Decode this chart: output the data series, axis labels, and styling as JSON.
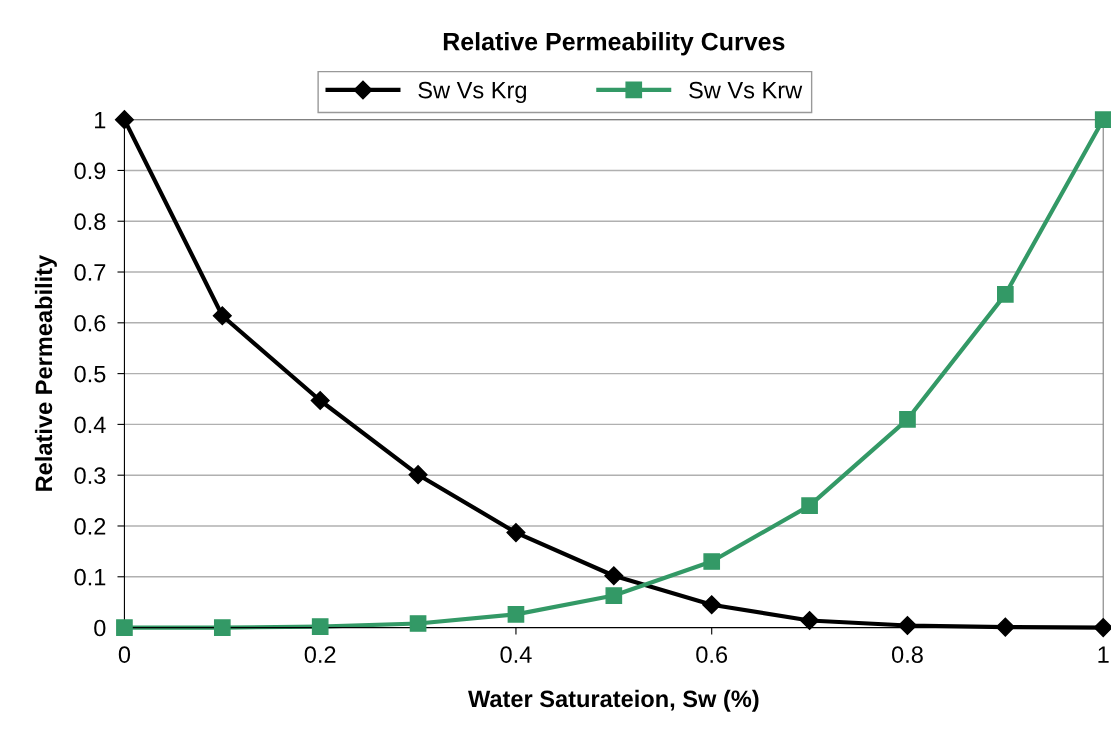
{
  "chart_data": {
    "type": "line",
    "title": "Relative Permeability Curves",
    "xlabel": "Water Saturateion, Sw (%)",
    "ylabel": "Relative Permeability",
    "x": [
      0,
      0.1,
      0.2,
      0.3,
      0.4,
      0.5,
      0.6,
      0.7,
      0.8,
      0.9,
      1
    ],
    "series": [
      {
        "name": "Sw Vs Krg",
        "color": "#000000",
        "marker": "diamond",
        "values": [
          1,
          0.614,
          0.447,
          0.301,
          0.187,
          0.102,
          0.045,
          0.014,
          0.004,
          0.001,
          0
        ]
      },
      {
        "name": "Sw Vs Krw",
        "color": "#339966",
        "marker": "square",
        "values": [
          0,
          0,
          0.002,
          0.008,
          0.026,
          0.063,
          0.13,
          0.24,
          0.41,
          0.656,
          1
        ]
      }
    ],
    "xlim": [
      0,
      1
    ],
    "xticks": [
      0,
      0.2,
      0.4,
      0.6,
      0.8,
      1
    ],
    "ylim": [
      0,
      1
    ],
    "yticks": [
      0,
      0.1,
      0.2,
      0.3,
      0.4,
      0.5,
      0.6,
      0.7,
      0.8,
      0.9,
      1
    ],
    "grid": "y",
    "legend": "top",
    "line_style": "solid"
  }
}
